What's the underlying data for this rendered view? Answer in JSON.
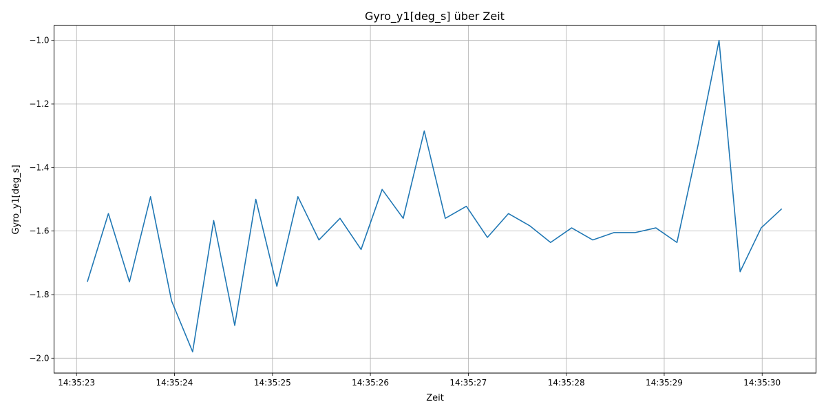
{
  "chart_data": {
    "type": "line",
    "title": "Gyro_y1[deg_s] über Zeit",
    "xlabel": "Zeit",
    "ylabel": "Gyro_y1[deg_s]",
    "xlim": [
      "14:35:22.770",
      "14:35:30.550"
    ],
    "ylim": [
      -2.047,
      -0.953
    ],
    "xticks": [
      "14:35:23",
      "14:35:24",
      "14:35:25",
      "14:35:26",
      "14:35:27",
      "14:35:28",
      "14:35:29",
      "14:35:30"
    ],
    "yticks": [
      -2.0,
      -1.8,
      -1.6,
      -1.4,
      -1.2,
      -1.0
    ],
    "ytick_labels": [
      "−2.0",
      "−1.8",
      "−1.6",
      "−1.4",
      "−1.2",
      "−1.0"
    ],
    "grid": true,
    "color": "#1f77b4",
    "series": [
      {
        "x": [
          "14:35:23.110",
          "14:35:23.325",
          "14:35:23.540",
          "14:35:23.755",
          "14:35:23.970",
          "14:35:24.185",
          "14:35:24.400",
          "14:35:24.615",
          "14:35:24.830",
          "14:35:25.045",
          "14:35:25.260",
          "14:35:25.475",
          "14:35:25.690",
          "14:35:25.905",
          "14:35:26.120",
          "14:35:26.335",
          "14:35:26.550",
          "14:35:26.765",
          "14:35:26.980",
          "14:35:27.195",
          "14:35:27.410",
          "14:35:27.625",
          "14:35:27.840",
          "14:35:28.055",
          "14:35:28.270",
          "14:35:28.485",
          "14:35:28.700",
          "14:35:28.915",
          "14:35:29.130",
          "14:35:29.345",
          "14:35:29.560",
          "14:35:29.775",
          "14:35:29.990",
          "14:35:30.200"
        ],
        "y": [
          -1.76,
          -1.545,
          -1.76,
          -1.492,
          -1.82,
          -1.98,
          -1.567,
          -1.897,
          -1.5,
          -1.774,
          -1.492,
          -1.628,
          -1.56,
          -1.658,
          -1.469,
          -1.56,
          -1.285,
          -1.56,
          -1.522,
          -1.62,
          -1.545,
          -1.583,
          -1.636,
          -1.59,
          -1.628,
          -1.605,
          -1.605,
          -1.59,
          -1.636,
          -1.33,
          -1.0,
          -1.728,
          -1.59,
          -1.53
        ]
      }
    ]
  }
}
